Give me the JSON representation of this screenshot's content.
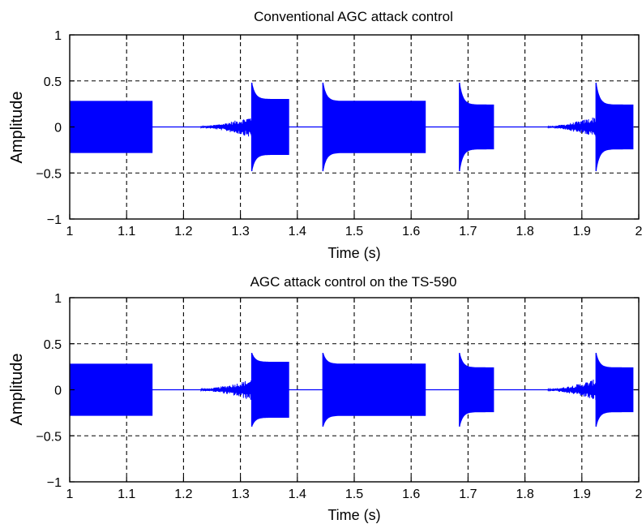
{
  "chart_data": [
    {
      "type": "line",
      "title": "Conventional AGC attack control",
      "xlabel": "Time (s)",
      "ylabel": "Amplitude",
      "xlim": [
        1,
        2
      ],
      "ylim": [
        -1,
        1
      ],
      "xticks": [
        1,
        1.1,
        1.2,
        1.3,
        1.4,
        1.5,
        1.6,
        1.7,
        1.8,
        1.9,
        2
      ],
      "xtick_labels": [
        "1",
        "1.1",
        "1.2",
        "1.3",
        "1.4",
        "1.5",
        "1.6",
        "1.7",
        "1.8",
        "1.9",
        "2"
      ],
      "yticks": [
        -1,
        -0.5,
        0,
        0.5,
        1
      ],
      "ytick_labels": [
        "−1",
        "−0.5",
        "0",
        "0.5",
        "1"
      ],
      "grid": true,
      "grid_style": "dashed",
      "line_color": "#0000ff",
      "series": [
        {
          "segments": [
            {
              "start": 1.0,
              "end": 1.145,
              "kind": "steady",
              "level": 0.28
            },
            {
              "start": 1.23,
              "end": 1.32,
              "kind": "ramp",
              "from": 0.01,
              "to": 0.12
            },
            {
              "start": 1.32,
              "end": 1.385,
              "kind": "burst",
              "peak": 0.48,
              "level": 0.3
            },
            {
              "start": 1.445,
              "end": 1.625,
              "kind": "burst",
              "peak": 0.48,
              "level": 0.28
            },
            {
              "start": 1.685,
              "end": 1.745,
              "kind": "burst",
              "peak": 0.48,
              "level": 0.24
            },
            {
              "start": 1.84,
              "end": 1.925,
              "kind": "ramp",
              "from": 0.01,
              "to": 0.12
            },
            {
              "start": 1.925,
              "end": 1.99,
              "kind": "burst",
              "peak": 0.48,
              "level": 0.24
            }
          ]
        }
      ]
    },
    {
      "type": "line",
      "title": "AGC attack control on the TS-590",
      "xlabel": "Time (s)",
      "ylabel": "Amplitude",
      "xlim": [
        1,
        2
      ],
      "ylim": [
        -1,
        1
      ],
      "xticks": [
        1,
        1.1,
        1.2,
        1.3,
        1.4,
        1.5,
        1.6,
        1.7,
        1.8,
        1.9,
        2
      ],
      "xtick_labels": [
        "1",
        "1.1",
        "1.2",
        "1.3",
        "1.4",
        "1.5",
        "1.6",
        "1.7",
        "1.8",
        "1.9",
        "2"
      ],
      "yticks": [
        -1,
        -0.5,
        0,
        0.5,
        1
      ],
      "ytick_labels": [
        "−1",
        "−0.5",
        "0",
        "0.5",
        "1"
      ],
      "grid": true,
      "grid_style": "dashed",
      "line_color": "#0000ff",
      "series": [
        {
          "segments": [
            {
              "start": 1.0,
              "end": 1.145,
              "kind": "steady",
              "level": 0.28
            },
            {
              "start": 1.23,
              "end": 1.32,
              "kind": "ramp",
              "from": 0.01,
              "to": 0.12
            },
            {
              "start": 1.32,
              "end": 1.385,
              "kind": "burst",
              "peak": 0.4,
              "level": 0.3
            },
            {
              "start": 1.445,
              "end": 1.625,
              "kind": "burst",
              "peak": 0.4,
              "level": 0.28
            },
            {
              "start": 1.685,
              "end": 1.745,
              "kind": "burst",
              "peak": 0.4,
              "level": 0.24
            },
            {
              "start": 1.84,
              "end": 1.925,
              "kind": "ramp",
              "from": 0.01,
              "to": 0.12
            },
            {
              "start": 1.925,
              "end": 1.99,
              "kind": "burst",
              "peak": 0.4,
              "level": 0.24
            }
          ]
        }
      ]
    }
  ]
}
